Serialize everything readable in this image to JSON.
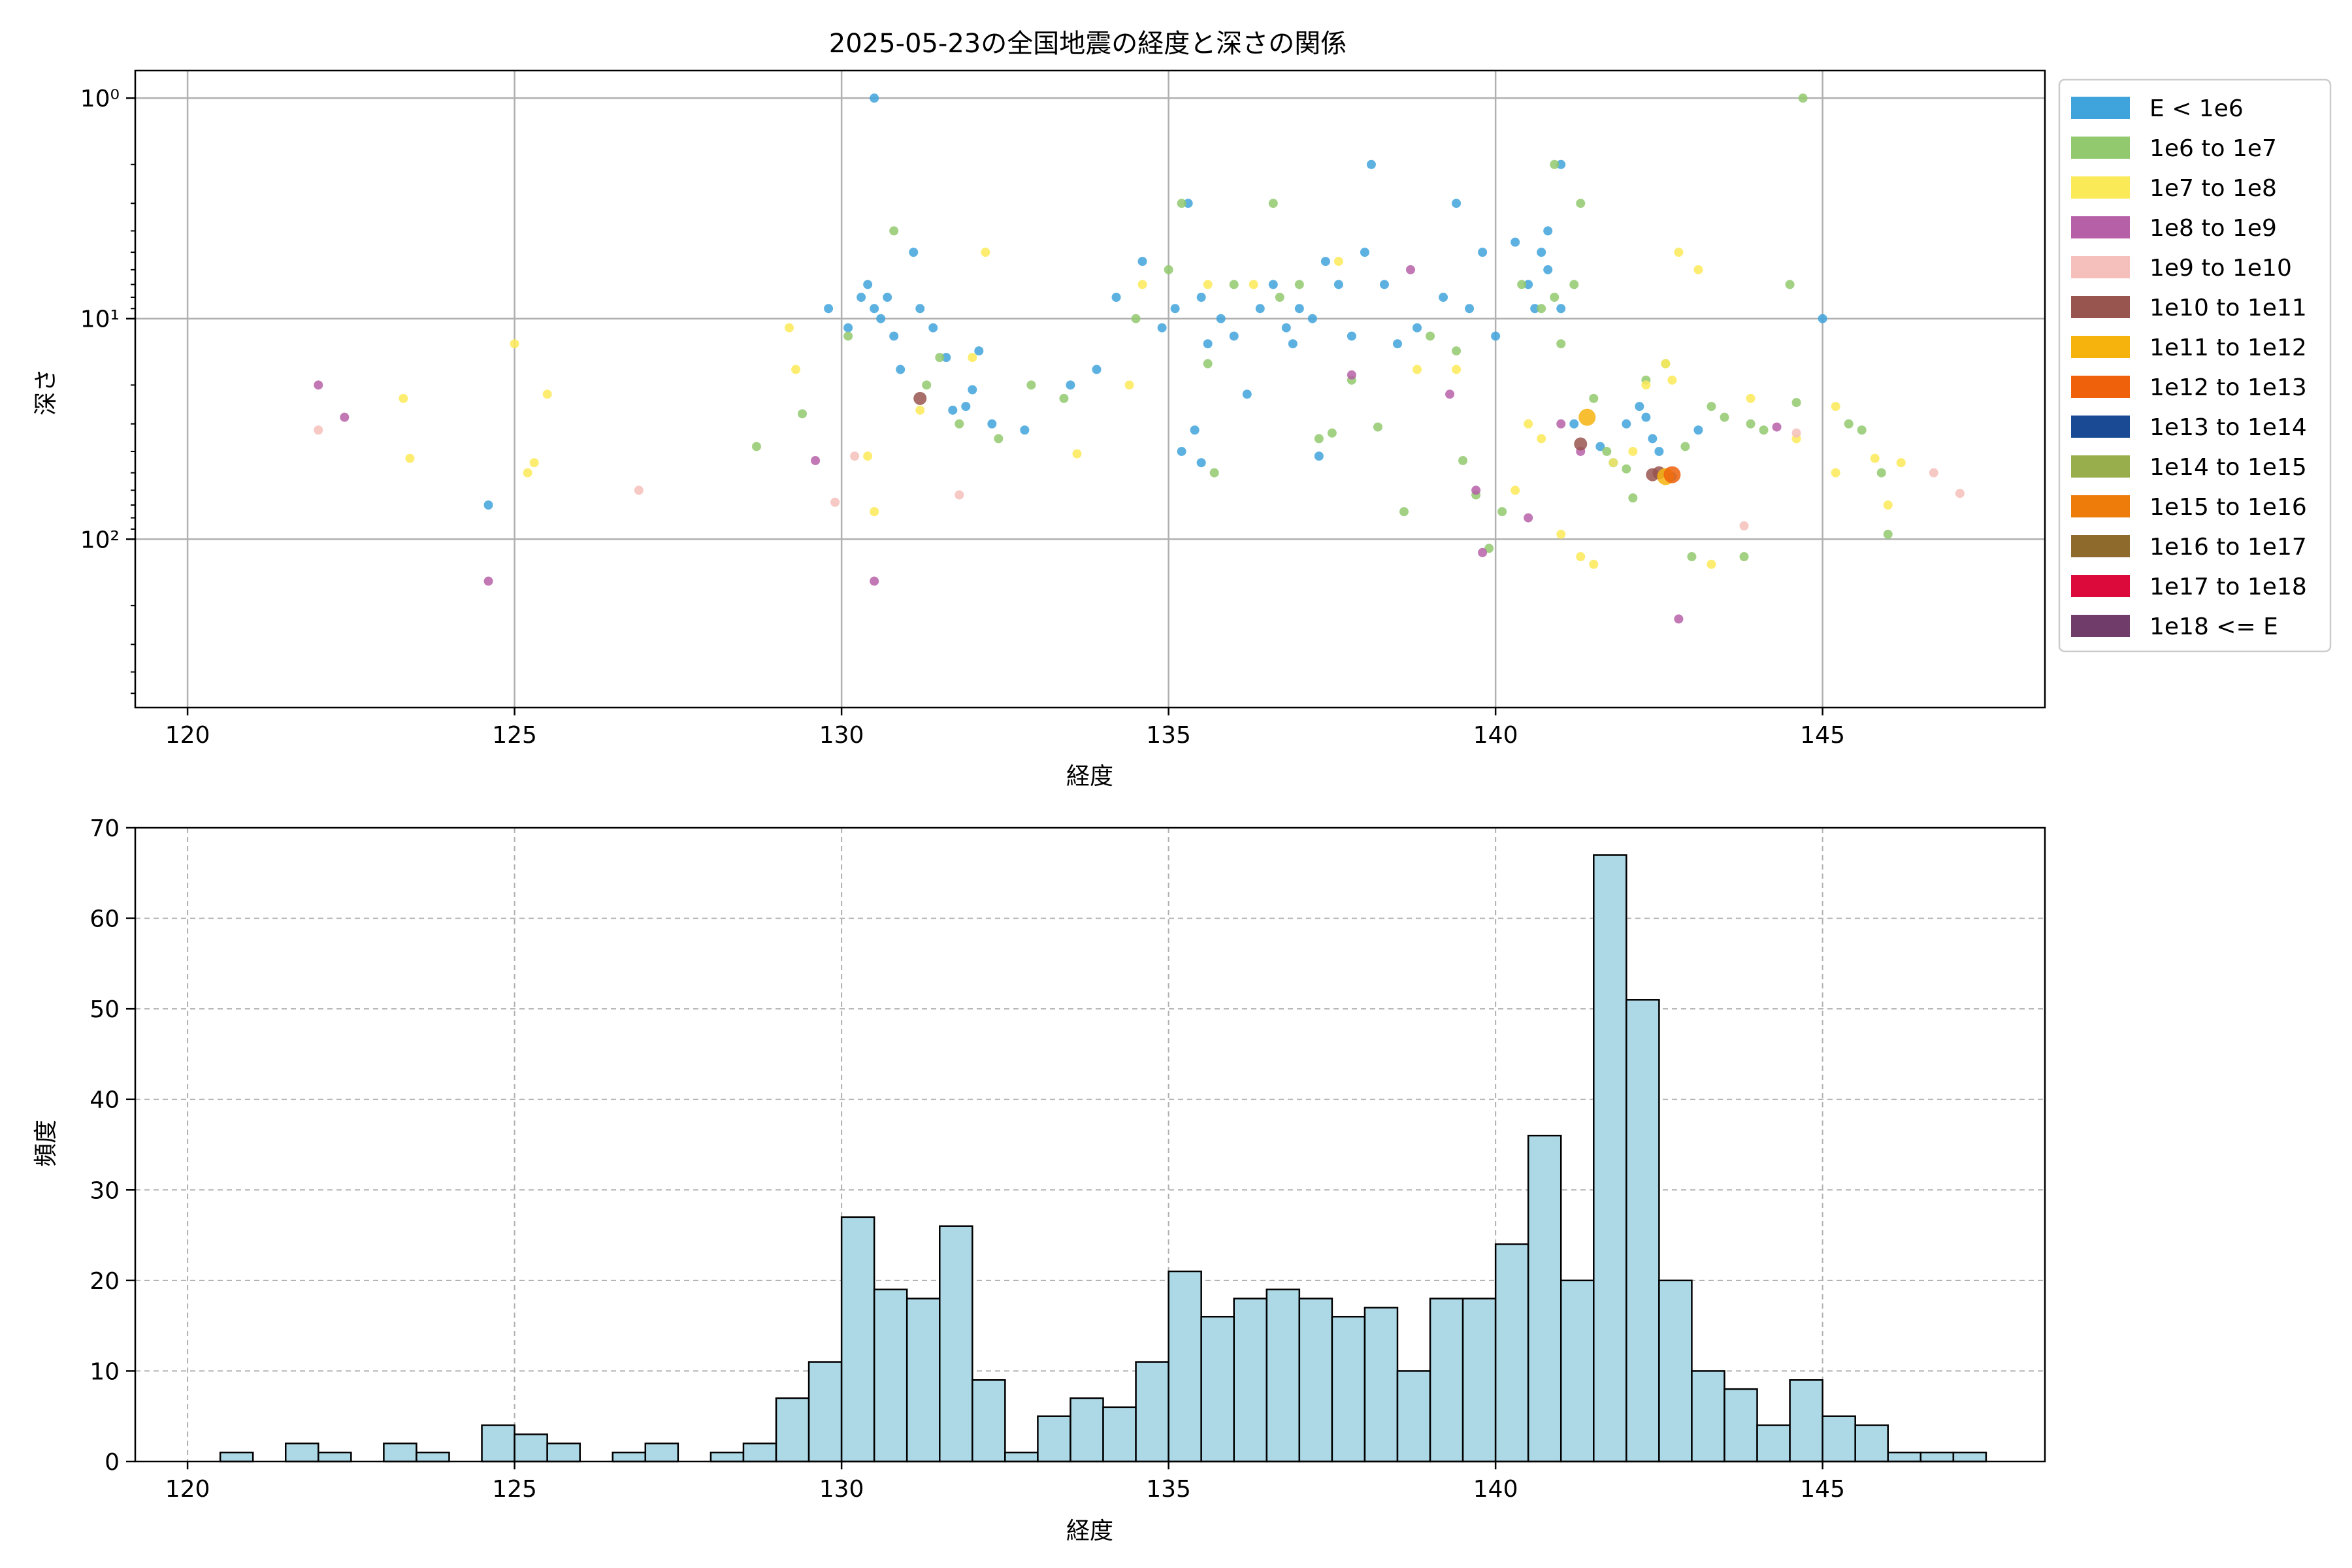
{
  "chart_data": [
    {
      "type": "scatter",
      "title": "2025-05-23の全国地震の経度と深さの関係",
      "xlabel": "経度",
      "ylabel": "深さ",
      "xlim": [
        119.2,
        148.4
      ],
      "ylim": [
        580,
        0.75
      ],
      "yscale": "log",
      "y_inverted": true,
      "x_ticks": [
        120,
        125,
        130,
        135,
        140,
        145
      ],
      "y_ticks": [
        {
          "value": 1,
          "label": "10⁰"
        },
        {
          "value": 10,
          "label": "10¹"
        },
        {
          "value": 100,
          "label": "10²"
        }
      ],
      "grid": true,
      "legend": {
        "placement": "outside-right",
        "entries": [
          {
            "label": "E < 1e6",
            "color": "#3fa3dc"
          },
          {
            "label": "1e6 to 1e7",
            "color": "#92c96f"
          },
          {
            "label": "1e7 to 1e8",
            "color": "#fbea58"
          },
          {
            "label": "1e8 to 1e9",
            "color": "#b660a7"
          },
          {
            "label": "1e9 to 1e10",
            "color": "#f5c0bb"
          },
          {
            "label": "1e10 to 1e11",
            "color": "#985550"
          },
          {
            "label": "1e11 to 1e12",
            "color": "#f6b30e"
          },
          {
            "label": "1e12 to 1e13",
            "color": "#ef620b"
          },
          {
            "label": "1e13 to 1e14",
            "color": "#1a4a93"
          },
          {
            "label": "1e14 to 1e15",
            "color": "#98ad4c"
          },
          {
            "label": "1e15 to 1e16",
            "color": "#ee7c0a"
          },
          {
            "label": "1e16 to 1e17",
            "color": "#8e6b2d"
          },
          {
            "label": "1e17 to 1e18",
            "color": "#dc093b"
          },
          {
            "label": "1e18 <= E",
            "color": "#703d6b"
          }
        ]
      },
      "series": [
        {
          "class": 0,
          "points": [
            [
              130.5,
              1.0
            ],
            [
              124.6,
              70
            ],
            [
              129.8,
              9
            ],
            [
              130.1,
              11
            ],
            [
              130.3,
              8
            ],
            [
              130.4,
              7
            ],
            [
              130.5,
              9
            ],
            [
              130.6,
              10
            ],
            [
              130.7,
              8
            ],
            [
              130.8,
              12
            ],
            [
              131.1,
              5
            ],
            [
              131.2,
              9
            ],
            [
              131.4,
              11
            ],
            [
              131.6,
              15
            ],
            [
              131.7,
              26
            ],
            [
              131.9,
              25
            ],
            [
              132.1,
              14
            ],
            [
              132.3,
              30
            ],
            [
              132.8,
              32
            ],
            [
              133.5,
              20
            ],
            [
              133.9,
              17
            ],
            [
              134.2,
              8
            ],
            [
              134.6,
              5.5
            ],
            [
              134.9,
              11
            ],
            [
              135.1,
              9
            ],
            [
              135.3,
              3
            ],
            [
              135.5,
              8
            ],
            [
              135.6,
              13
            ],
            [
              135.8,
              10
            ],
            [
              136.0,
              12
            ],
            [
              136.2,
              22
            ],
            [
              136.4,
              9
            ],
            [
              136.6,
              7
            ],
            [
              136.8,
              11
            ],
            [
              137.0,
              9
            ],
            [
              137.2,
              10
            ],
            [
              137.4,
              5.5
            ],
            [
              137.6,
              7
            ],
            [
              137.8,
              12
            ],
            [
              138.0,
              5
            ],
            [
              138.1,
              2
            ],
            [
              138.3,
              7
            ],
            [
              138.5,
              13
            ],
            [
              138.8,
              11
            ],
            [
              139.2,
              8
            ],
            [
              139.4,
              3
            ],
            [
              139.6,
              9
            ],
            [
              139.8,
              5
            ],
            [
              140.0,
              12
            ],
            [
              140.3,
              4.5
            ],
            [
              140.5,
              7
            ],
            [
              140.6,
              9
            ],
            [
              140.8,
              6
            ],
            [
              141.0,
              2
            ],
            [
              141.2,
              30
            ],
            [
              141.6,
              38
            ],
            [
              141.8,
              45
            ],
            [
              142.0,
              30
            ],
            [
              142.2,
              25
            ],
            [
              142.4,
              35
            ],
            [
              142.5,
              40
            ],
            [
              142.7,
              52
            ],
            [
              143.1,
              32
            ],
            [
              145.0,
              10
            ],
            [
              130.9,
              17
            ],
            [
              132.0,
              21
            ],
            [
              135.4,
              32
            ],
            [
              135.2,
              40
            ],
            [
              135.5,
              45
            ],
            [
              137.3,
              42
            ],
            [
              136.9,
              13
            ],
            [
              140.7,
              5
            ],
            [
              140.8,
              4
            ],
            [
              141.0,
              9
            ],
            [
              142.3,
              28
            ]
          ]
        },
        {
          "class": 1,
          "points": [
            [
              130.8,
              4
            ],
            [
              131.3,
              20
            ],
            [
              131.5,
              15
            ],
            [
              131.8,
              30
            ],
            [
              132.4,
              35
            ],
            [
              132.9,
              20
            ],
            [
              133.4,
              23
            ],
            [
              134.5,
              10
            ],
            [
              135.0,
              6
            ],
            [
              135.2,
              3
            ],
            [
              135.6,
              16
            ],
            [
              135.7,
              50
            ],
            [
              136.0,
              7
            ],
            [
              136.6,
              3
            ],
            [
              136.7,
              8
            ],
            [
              137.0,
              7
            ],
            [
              137.3,
              35
            ],
            [
              137.5,
              33
            ],
            [
              137.8,
              19
            ],
            [
              138.2,
              31
            ],
            [
              138.6,
              75
            ],
            [
              139.0,
              12
            ],
            [
              139.4,
              14
            ],
            [
              139.5,
              44
            ],
            [
              139.7,
              63
            ],
            [
              139.9,
              110
            ],
            [
              140.1,
              75
            ],
            [
              140.4,
              7
            ],
            [
              140.7,
              9
            ],
            [
              140.9,
              8
            ],
            [
              141.2,
              7
            ],
            [
              141.5,
              23
            ],
            [
              141.7,
              40
            ],
            [
              142.0,
              48
            ],
            [
              142.3,
              19
            ],
            [
              142.6,
              16
            ],
            [
              142.9,
              38
            ],
            [
              143.3,
              25
            ],
            [
              143.5,
              28
            ],
            [
              143.9,
              30
            ],
            [
              144.1,
              32
            ],
            [
              144.5,
              7
            ],
            [
              144.7,
              1.0
            ],
            [
              145.6,
              32
            ],
            [
              146.0,
              95
            ],
            [
              145.9,
              50
            ],
            [
              128.7,
              38
            ],
            [
              129.4,
              27
            ],
            [
              130.1,
              12
            ],
            [
              144.6,
              24
            ],
            [
              145.4,
              30
            ],
            [
              140.9,
              2
            ],
            [
              141.3,
              3
            ],
            [
              141.0,
              13
            ],
            [
              142.1,
              65
            ],
            [
              143.0,
              120
            ],
            [
              143.8,
              120
            ]
          ]
        },
        {
          "class": 2,
          "points": [
            [
              123.3,
              23
            ],
            [
              123.4,
              43
            ],
            [
              125.0,
              13
            ],
            [
              125.2,
              50
            ],
            [
              125.3,
              45
            ],
            [
              125.5,
              22
            ],
            [
              129.2,
              11
            ],
            [
              129.3,
              17
            ],
            [
              130.4,
              42
            ],
            [
              130.5,
              75
            ],
            [
              131.2,
              26
            ],
            [
              132.0,
              15
            ],
            [
              132.2,
              5
            ],
            [
              133.6,
              41
            ],
            [
              134.4,
              20
            ],
            [
              134.6,
              7
            ],
            [
              135.6,
              7
            ],
            [
              136.3,
              7
            ],
            [
              137.6,
              5.5
            ],
            [
              138.8,
              17
            ],
            [
              139.4,
              17
            ],
            [
              140.3,
              60
            ],
            [
              140.5,
              30
            ],
            [
              140.7,
              35
            ],
            [
              141.0,
              95
            ],
            [
              141.3,
              120
            ],
            [
              141.5,
              130
            ],
            [
              141.8,
              45
            ],
            [
              142.1,
              40
            ],
            [
              142.3,
              20
            ],
            [
              142.6,
              16
            ],
            [
              142.8,
              5
            ],
            [
              143.1,
              6
            ],
            [
              143.3,
              130
            ],
            [
              143.9,
              23
            ],
            [
              144.6,
              35
            ],
            [
              145.2,
              25
            ],
            [
              145.2,
              50
            ],
            [
              145.8,
              43
            ],
            [
              146.0,
              70
            ],
            [
              146.2,
              45
            ],
            [
              142.7,
              19
            ]
          ]
        },
        {
          "class": 3,
          "points": [
            [
              122.0,
              20
            ],
            [
              122.4,
              28
            ],
            [
              124.6,
              155
            ],
            [
              129.6,
              44
            ],
            [
              130.5,
              155
            ],
            [
              137.8,
              18
            ],
            [
              138.7,
              6
            ],
            [
              139.3,
              22
            ],
            [
              139.7,
              60
            ],
            [
              139.8,
              115
            ],
            [
              140.5,
              80
            ],
            [
              141.0,
              30
            ],
            [
              141.3,
              40
            ],
            [
              142.8,
              230
            ],
            [
              144.3,
              31
            ]
          ]
        },
        {
          "class": 4,
          "points": [
            [
              122.0,
              32
            ],
            [
              126.9,
              60
            ],
            [
              129.9,
              68
            ],
            [
              130.2,
              42
            ],
            [
              131.8,
              63
            ],
            [
              143.8,
              87
            ],
            [
              144.6,
              33
            ],
            [
              146.7,
              50
            ],
            [
              147.1,
              62
            ]
          ]
        },
        {
          "class": 5,
          "points": [
            [
              131.2,
              23
            ],
            [
              141.3,
              37
            ],
            [
              142.4,
              51
            ],
            [
              142.5,
              50
            ]
          ]
        },
        {
          "class": 6,
          "points": [
            [
              141.4,
              28
            ],
            [
              142.6,
              52
            ]
          ]
        },
        {
          "class": 7,
          "points": [
            [
              142.7,
              51
            ]
          ]
        }
      ]
    },
    {
      "type": "bar",
      "subtype": "histogram",
      "xlabel": "経度",
      "ylabel": "頻度",
      "xlim": [
        119.2,
        148.4
      ],
      "ylim": [
        0,
        70
      ],
      "x_ticks": [
        120,
        125,
        130,
        135,
        140,
        145
      ],
      "y_ticks": [
        0,
        10,
        20,
        30,
        40,
        50,
        60,
        70
      ],
      "grid": true,
      "bar_color": "#add8e6",
      "edge_color": "#000000",
      "bin_start": 120.5,
      "bin_width": 0.5,
      "values": [
        1,
        0,
        2,
        1,
        0,
        2,
        1,
        0,
        4,
        3,
        2,
        0,
        1,
        2,
        0,
        1,
        2,
        7,
        11,
        27,
        19,
        18,
        26,
        9,
        1,
        5,
        7,
        6,
        11,
        21,
        16,
        18,
        19,
        18,
        16,
        17,
        10,
        18,
        18,
        24,
        36,
        20,
        67,
        51,
        20,
        10,
        8,
        4,
        9,
        5,
        4,
        1,
        1,
        1
      ]
    }
  ]
}
